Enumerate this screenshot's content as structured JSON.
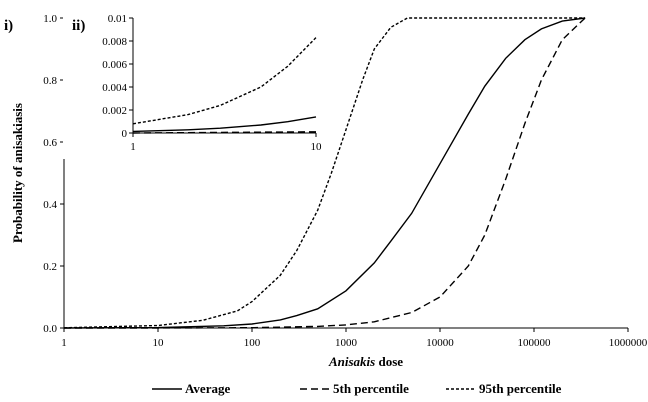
{
  "chart_data": [
    {
      "panel_label": "i)",
      "type": "line",
      "xlabel_italic": "Anisakis",
      "xlabel_rest": " dose",
      "ylabel": "Probability of anisakiasis",
      "x_scale": "log",
      "xlim": [
        1,
        1000000
      ],
      "ylim": [
        0,
        1
      ],
      "x_ticks": [
        1,
        10,
        100,
        1000,
        10000,
        100000,
        1000000
      ],
      "x_tick_labels": [
        "1",
        "10",
        "100",
        "1000",
        "10000",
        "100000",
        "1000000"
      ],
      "y_ticks": [
        0,
        0.2,
        0.4,
        0.6,
        0.8,
        1
      ],
      "y_tick_labels": [
        "0.0",
        "0.2",
        "0.4",
        "0.6",
        "0.8",
        "1.0"
      ],
      "grid": false,
      "series": [
        {
          "name": "Average",
          "dash": "solid",
          "x": [
            1,
            10,
            50,
            100,
            200,
            300,
            500,
            1000,
            2000,
            3000,
            5000,
            10000,
            20000,
            30000,
            50000,
            80000,
            120000,
            200000,
            350000
          ],
          "y": [
            0.0001,
            0.0014,
            0.007,
            0.013,
            0.026,
            0.04,
            0.062,
            0.12,
            0.21,
            0.28,
            0.37,
            0.53,
            0.69,
            0.78,
            0.87,
            0.93,
            0.965,
            0.99,
            1.0
          ]
        },
        {
          "name": "5th percentile",
          "dash": "dashed",
          "x": [
            1,
            10,
            100,
            500,
            1000,
            2000,
            5000,
            10000,
            20000,
            30000,
            50000,
            80000,
            120000,
            200000,
            350000
          ],
          "y": [
            0,
            0.0001,
            0.001,
            0.005,
            0.01,
            0.02,
            0.05,
            0.1,
            0.2,
            0.3,
            0.48,
            0.66,
            0.8,
            0.93,
            1.0
          ]
        },
        {
          "name": "95th percentile",
          "dash": "dotted-dash",
          "x": [
            1,
            10,
            30,
            70,
            100,
            200,
            300,
            500,
            700,
            1000,
            1500,
            2000,
            3000,
            4500,
            7000,
            350000
          ],
          "y": [
            0.0008,
            0.008,
            0.025,
            0.055,
            0.085,
            0.17,
            0.25,
            0.38,
            0.5,
            0.64,
            0.8,
            0.9,
            0.97,
            1.0,
            1.0,
            1.0
          ]
        }
      ],
      "legend": {
        "position": "bottom",
        "entries": [
          "Average",
          "5th percentile",
          "95th percentile"
        ]
      }
    },
    {
      "panel_label": "ii)",
      "type": "line",
      "inset": true,
      "x_scale": "log",
      "xlim": [
        1,
        10
      ],
      "ylim": [
        0,
        0.01
      ],
      "x_ticks": [
        1,
        10
      ],
      "x_tick_labels": [
        "1",
        "10"
      ],
      "y_ticks": [
        0,
        0.002,
        0.004,
        0.006,
        0.008,
        0.01
      ],
      "y_tick_labels": [
        "0",
        "0.002",
        "0.004",
        "0.006",
        "0.008",
        "0.01"
      ],
      "series": [
        {
          "name": "Average",
          "dash": "solid",
          "x": [
            1,
            2,
            3,
            5,
            7,
            10
          ],
          "y": [
            0.00014,
            0.00028,
            0.00042,
            0.0007,
            0.00098,
            0.0014
          ]
        },
        {
          "name": "5th percentile",
          "dash": "dashed",
          "x": [
            1,
            10
          ],
          "y": [
            0.0,
            0.0001
          ]
        },
        {
          "name": "95th percentile",
          "dash": "dotted-dash",
          "x": [
            1,
            2,
            3,
            5,
            7,
            10
          ],
          "y": [
            0.0008,
            0.0016,
            0.0024,
            0.004,
            0.0058,
            0.0083
          ]
        }
      ]
    }
  ]
}
